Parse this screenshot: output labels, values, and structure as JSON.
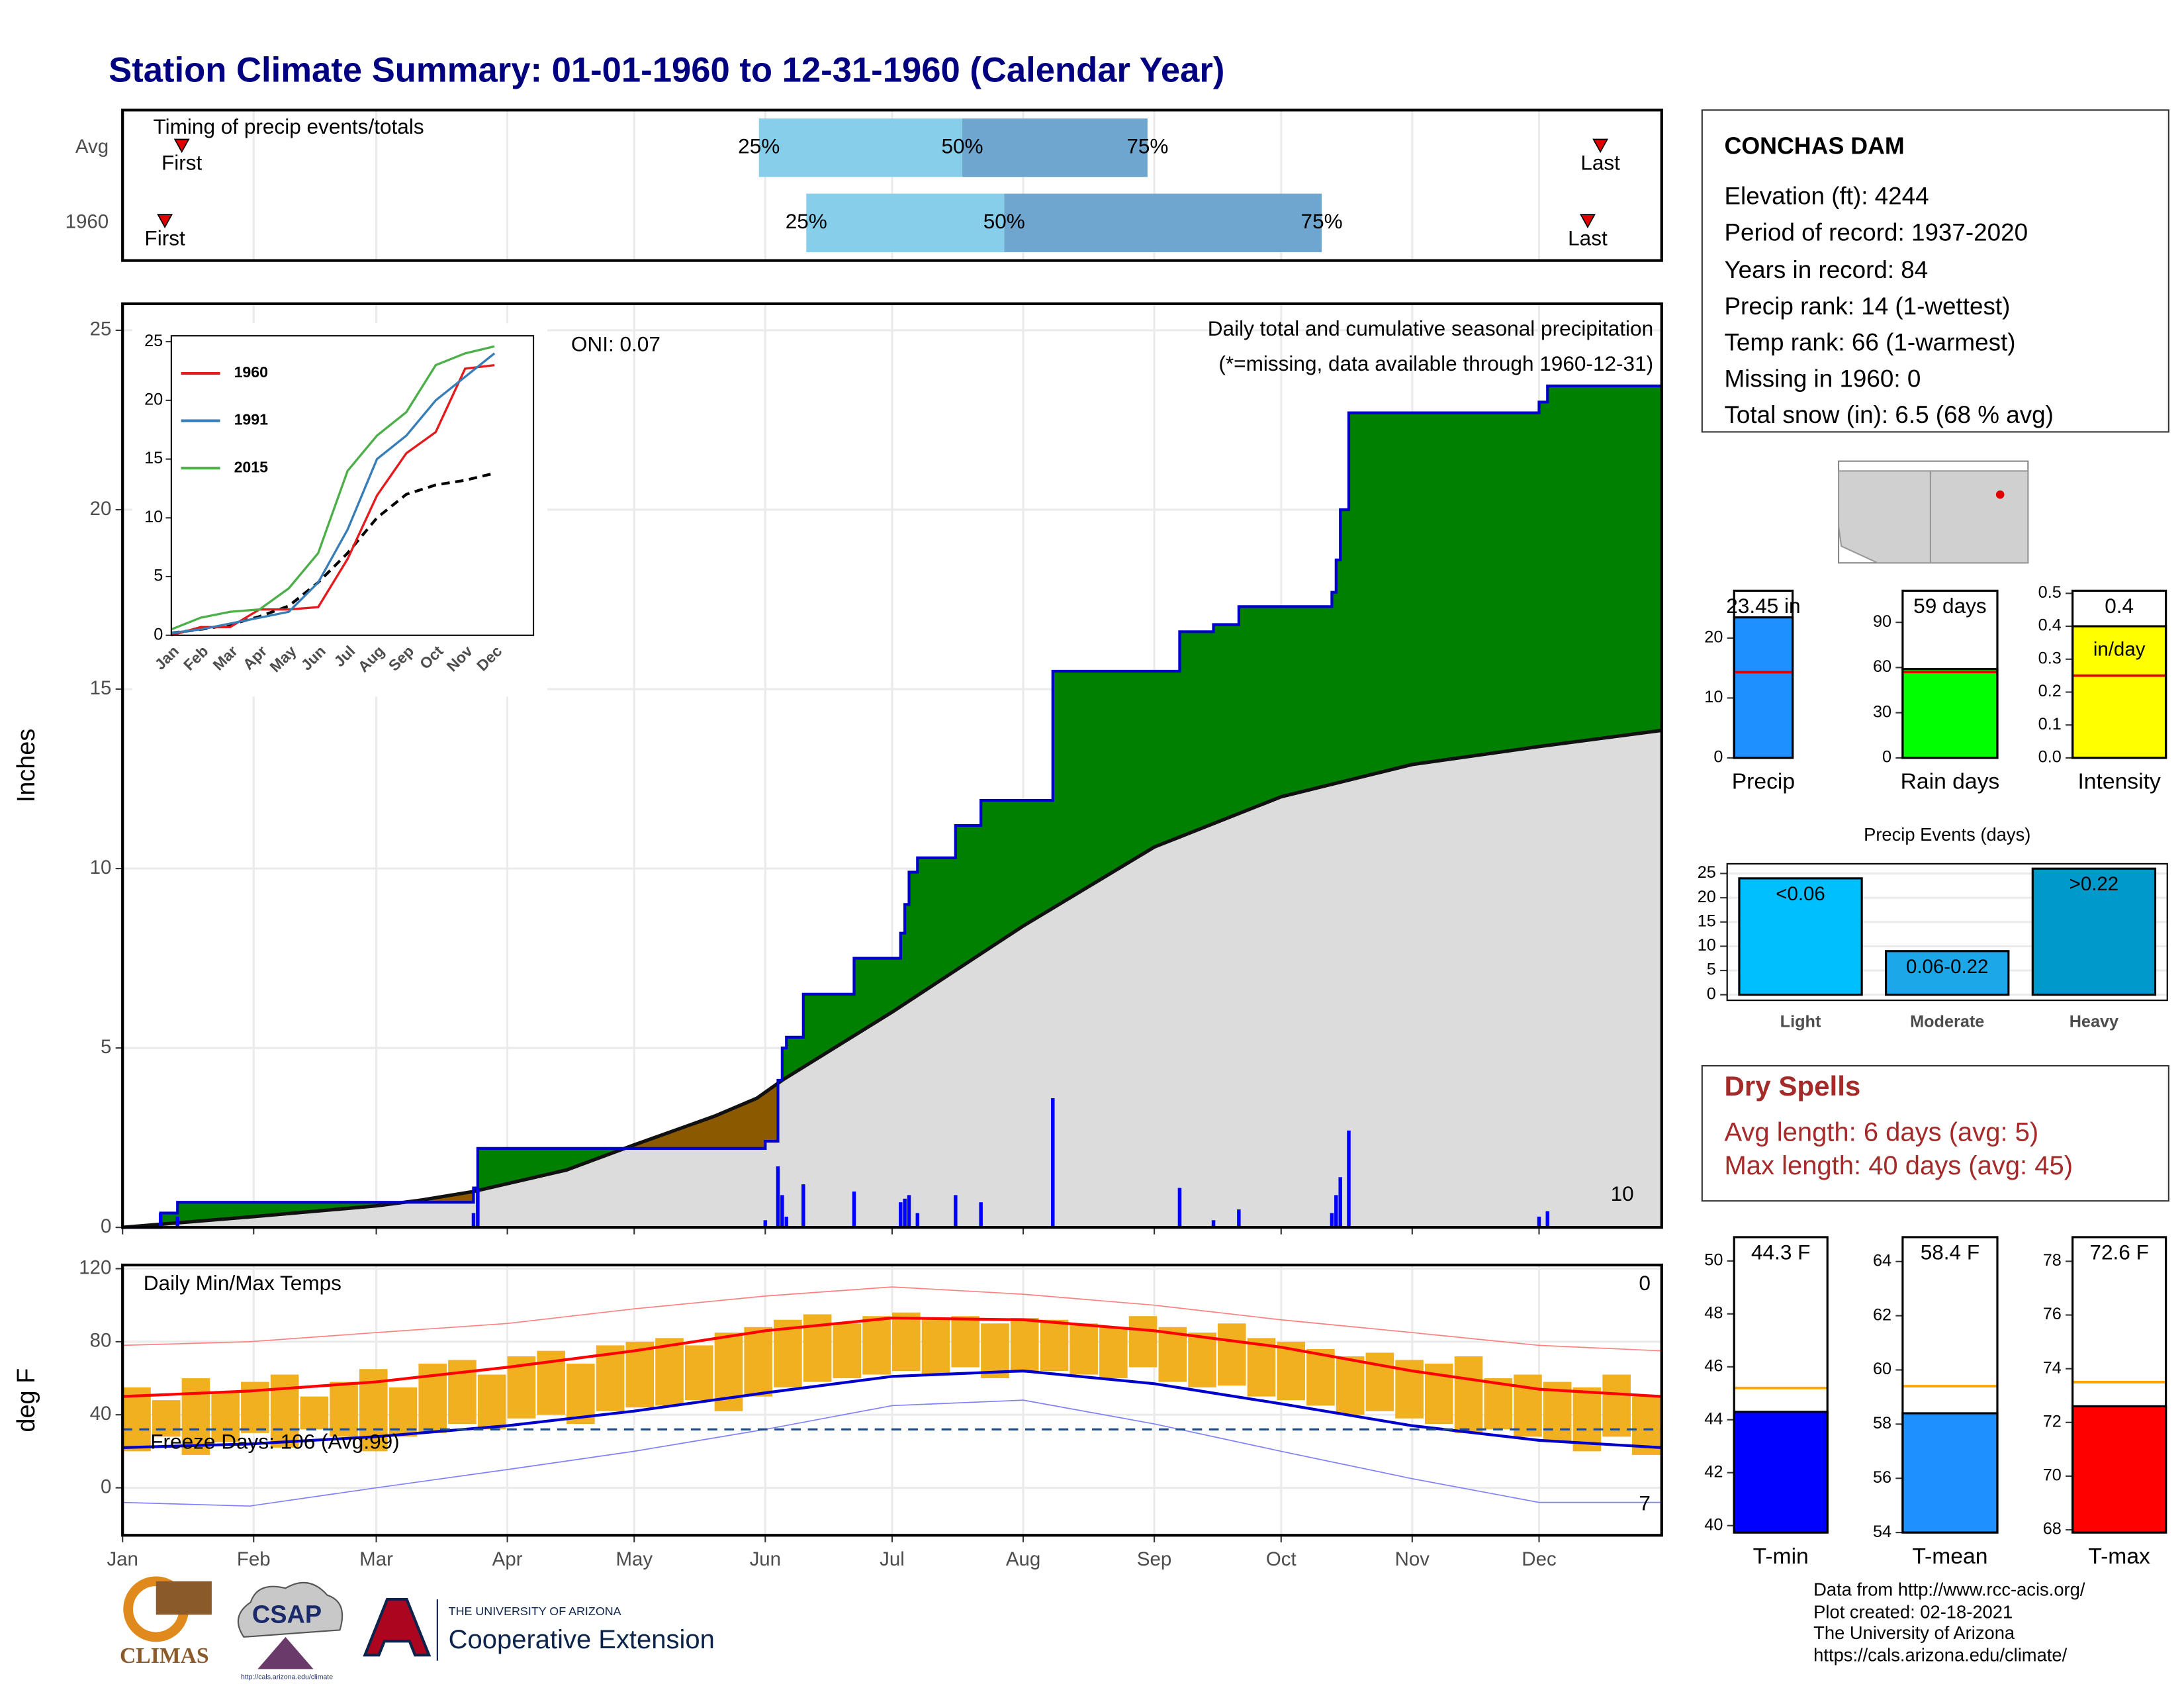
{
  "title": "Station Climate Summary: 01-01-1960 to 12-31-1960 (Calendar Year)",
  "station": {
    "name": "CONCHAS DAM",
    "lines": [
      "Elevation (ft): 4244",
      "Period of record: 1937-2020",
      "Years in record: 84",
      "Precip rank: 14 (1-wettest)",
      "Temp rank: 66 (1-warmest)",
      "Missing in 1960: 0",
      "Total snow (in): 6.5 (68 % avg)"
    ]
  },
  "dry_spells": {
    "title": "Dry Spells",
    "lines": [
      "Avg length: 6 days (avg: 5)",
      "Max length: 40 days (avg: 45)"
    ]
  },
  "footer": {
    "lines": [
      "Data from http://www.rcc-acis.org/",
      "Plot created: 02-18-2021",
      "The University of Arizona",
      "https://cals.arizona.edu/climate/"
    ]
  },
  "logos": {
    "climas": "CLIMAS",
    "csap": "CSAP",
    "csap_url": "http://cals.arizona.edu/climate",
    "university": "THE UNIVERSITY OF ARIZONA",
    "extension": "Cooperative Extension"
  },
  "chart_data": [
    {
      "type": "timing",
      "title": "Timing of precip events/totals",
      "categories": [
        "Avg",
        "1960"
      ],
      "xlim": [
        0,
        364
      ],
      "first": [
        14,
        10
      ],
      "q25": [
        150.5,
        161.7
      ],
      "q50": [
        198.6,
        208.5
      ],
      "q75": [
        242.4,
        283.6
      ],
      "last": [
        349.5,
        346.5
      ],
      "first_label": "First",
      "last_label": "Last",
      "q_labels": [
        "25%",
        "50%",
        "75%"
      ],
      "colors": [
        "#87ceeb",
        "#6ea6cf"
      ],
      "marker_color": "#e00000"
    },
    {
      "type": "cumulative",
      "title": "Daily total and cumulative seasonal precipitation",
      "note": "(*=missing, data available through 1960-12-31)",
      "annotation": "ONI: 0.07",
      "record_count": 10,
      "ylabel": "Inches",
      "xlim": [
        0,
        364
      ],
      "ylim": [
        0,
        25.74
      ],
      "yticks": [
        0,
        5,
        10,
        15,
        20,
        25
      ],
      "observed": {
        "color": "#0000cc",
        "x": [
          0,
          9,
          9,
          13,
          13,
          83,
          83,
          84,
          84,
          152,
          152,
          155,
          155,
          156,
          156,
          157,
          157,
          161,
          161,
          173,
          173,
          184,
          184,
          185,
          185,
          186,
          186,
          188,
          188,
          197,
          197,
          203,
          203,
          220,
          220,
          250,
          250,
          258,
          258,
          264,
          264,
          286,
          286,
          287,
          287,
          288,
          288,
          290,
          290,
          335,
          335,
          337,
          337,
          364
        ],
        "values": [
          0,
          0,
          0.4,
          0.4,
          0.7,
          0.7,
          1.1,
          1.1,
          2.2,
          2.2,
          2.4,
          2.4,
          4.1,
          4.1,
          5.0,
          5.0,
          5.3,
          5.3,
          6.5,
          6.5,
          7.5,
          7.5,
          8.2,
          8.2,
          9.0,
          9.0,
          9.9,
          9.9,
          10.3,
          10.3,
          11.2,
          11.2,
          11.9,
          11.9,
          15.5,
          15.5,
          16.6,
          16.6,
          16.8,
          16.8,
          17.3,
          17.3,
          17.7,
          17.7,
          18.6,
          18.6,
          20.0,
          20.0,
          22.7,
          22.7,
          23.0,
          23.0,
          23.45,
          23.45
        ]
      },
      "average": {
        "color": "#111111",
        "x": [
          0,
          31,
          60,
          70,
          83,
          105,
          121,
          140,
          150,
          156,
          182,
          213,
          244,
          274,
          305,
          335,
          364
        ],
        "values": [
          0,
          0.3,
          0.6,
          0.75,
          1.0,
          1.6,
          2.3,
          3.1,
          3.6,
          4.1,
          6.0,
          8.4,
          10.6,
          12.0,
          12.9,
          13.4,
          13.85
        ]
      },
      "daily": {
        "color": "#0000ff",
        "x": [
          9,
          13,
          83,
          84,
          152,
          155,
          156,
          157,
          161,
          173,
          184,
          185,
          186,
          188,
          197,
          203,
          220,
          250,
          258,
          264,
          286,
          287,
          288,
          290,
          335,
          337
        ],
        "values": [
          0.4,
          0.3,
          0.4,
          1.1,
          0.2,
          1.7,
          0.9,
          0.3,
          1.2,
          1.0,
          0.7,
          0.8,
          0.9,
          0.4,
          0.9,
          0.7,
          3.6,
          1.1,
          0.2,
          0.5,
          0.4,
          0.9,
          1.4,
          2.7,
          0.3,
          0.45
        ]
      },
      "fill_above": "#008000",
      "fill_below": "#8b5a00",
      "fill_avg": "#dcdcdc",
      "count_color": "#ffa500",
      "note_color": "#e00000"
    },
    {
      "type": "line",
      "categories": [
        "Jan",
        "Feb",
        "Mar",
        "Apr",
        "May",
        "Jun",
        "Jul",
        "Aug",
        "Sep",
        "Oct",
        "Nov",
        "Dec"
      ],
      "ylim": [
        0,
        25.5
      ],
      "yticks": [
        0,
        5,
        10,
        15,
        20,
        25
      ],
      "series": [
        {
          "name": "1960",
          "color": "#e41a1c",
          "values": [
            0,
            0.7,
            0.7,
            2.2,
            2.2,
            2.4,
            6.5,
            11.9,
            15.5,
            17.3,
            22.7,
            23.0
          ]
        },
        {
          "name": "1991",
          "color": "#377eb8",
          "values": [
            0.2,
            0.5,
            1.0,
            1.5,
            2.0,
            4.5,
            9.0,
            15.0,
            17.0,
            20.0,
            22.0,
            24.0
          ]
        },
        {
          "name": "2015",
          "color": "#4daf4a",
          "values": [
            0.5,
            1.5,
            2.0,
            2.2,
            4.0,
            7.0,
            14.0,
            17.0,
            19.0,
            23.0,
            24.0,
            24.6
          ]
        }
      ],
      "average_values": [
        0.2,
        0.5,
        0.9,
        1.6,
        2.5,
        4.5,
        7.0,
        10.0,
        12.0,
        12.8,
        13.2,
        13.8
      ]
    },
    {
      "type": "temps",
      "title": "Daily Min/Max Temps",
      "ylabel": "deg F",
      "xlim": [
        0,
        364
      ],
      "ylim": [
        -26,
        122
      ],
      "yticks": [
        0,
        40,
        80,
        120
      ],
      "xticks": [
        {
          "value": 0,
          "label": "Jan"
        },
        {
          "value": 31,
          "label": "Feb"
        },
        {
          "value": 60,
          "label": "Mar"
        },
        {
          "value": 91,
          "label": "Apr"
        },
        {
          "value": 121,
          "label": "May"
        },
        {
          "value": 152,
          "label": "Jun"
        },
        {
          "value": 182,
          "label": "Jul"
        },
        {
          "value": 213,
          "label": "Aug"
        },
        {
          "value": 244,
          "label": "Sep"
        },
        {
          "value": 274,
          "label": "Oct"
        },
        {
          "value": 305,
          "label": "Nov"
        },
        {
          "value": 335,
          "label": "Dec"
        }
      ],
      "freeze_line": 32,
      "freeze_label": "Freeze Days: 106 (Avg:99)",
      "record_high_count": 0,
      "record_low_count": 7,
      "daily": {
        "color": "#f0b020",
        "x": [
          0,
          7,
          14,
          21,
          28,
          35,
          42,
          49,
          56,
          63,
          70,
          77,
          84,
          91,
          98,
          105,
          112,
          119,
          126,
          133,
          140,
          147,
          154,
          161,
          168,
          175,
          182,
          189,
          196,
          203,
          210,
          217,
          224,
          231,
          238,
          245,
          252,
          259,
          266,
          273,
          280,
          287,
          294,
          301,
          308,
          315,
          322,
          329,
          336,
          343,
          350,
          357,
          364
        ],
        "low": [
          20,
          28,
          18,
          25,
          30,
          22,
          32,
          28,
          20,
          28,
          30,
          35,
          32,
          38,
          40,
          35,
          42,
          44,
          45,
          48,
          42,
          50,
          55,
          58,
          60,
          62,
          64,
          62,
          66,
          60,
          63,
          64,
          62,
          60,
          66,
          58,
          55,
          56,
          50,
          48,
          45,
          40,
          42,
          38,
          35,
          30,
          32,
          28,
          25,
          20,
          28,
          18,
          24
        ],
        "high": [
          55,
          48,
          60,
          52,
          58,
          62,
          50,
          58,
          65,
          55,
          68,
          70,
          62,
          72,
          75,
          68,
          78,
          80,
          82,
          78,
          85,
          88,
          92,
          95,
          90,
          94,
          96,
          92,
          94,
          90,
          93,
          92,
          90,
          88,
          94,
          88,
          85,
          90,
          82,
          80,
          76,
          72,
          74,
          70,
          68,
          72,
          60,
          62,
          58,
          55,
          62,
          50,
          48
        ]
      },
      "avg_max": {
        "color": "#ff0000",
        "x": [
          0,
          30,
          60,
          91,
          121,
          152,
          182,
          213,
          244,
          274,
          305,
          335,
          364
        ],
        "values": [
          50,
          53,
          58,
          66,
          75,
          86,
          93,
          92,
          86,
          77,
          64,
          54,
          50
        ]
      },
      "avg_min": {
        "color": "#0000cc",
        "x": [
          0,
          30,
          60,
          91,
          121,
          152,
          182,
          213,
          244,
          274,
          305,
          335,
          364
        ],
        "values": [
          22,
          24,
          28,
          34,
          42,
          52,
          61,
          64,
          57,
          46,
          34,
          26,
          22
        ]
      },
      "record_high": {
        "color": "#ff8080",
        "x": [
          0,
          30,
          60,
          91,
          121,
          152,
          182,
          213,
          244,
          274,
          305,
          335,
          364
        ],
        "values": [
          78,
          80,
          85,
          90,
          98,
          105,
          110,
          106,
          100,
          92,
          85,
          78,
          75
        ]
      },
      "record_low": {
        "color": "#8080ff",
        "x": [
          0,
          30,
          60,
          91,
          121,
          152,
          182,
          213,
          244,
          274,
          305,
          335,
          364
        ],
        "values": [
          -8,
          -10,
          0,
          10,
          20,
          32,
          45,
          48,
          35,
          20,
          5,
          -8,
          -8
        ]
      },
      "freeze_color": "#1a4a8a",
      "high_count_color": "#e00000",
      "low_count_color": "#0000cc"
    },
    {
      "type": "gauge",
      "xlabel": "Precip",
      "value": 23.45,
      "value_label": "23.45 in",
      "avg": 14.3,
      "ylim": [
        0,
        27.9
      ],
      "yticks": [
        0,
        10,
        20
      ],
      "color": "#1e90ff",
      "avg_color": "#e00000"
    },
    {
      "type": "gauge",
      "xlabel": "Rain days",
      "value": 59,
      "value_label": "59 days",
      "avg": 57,
      "ylim": [
        0,
        111
      ],
      "yticks": [
        0,
        30,
        60,
        90
      ],
      "color": "#00ff00",
      "avg_color": "#e00000"
    },
    {
      "type": "gauge",
      "xlabel": "Intensity",
      "value": 0.4,
      "value_label": "0.4",
      "unit": "in/day",
      "avg": 0.25,
      "ylim": [
        0,
        0.508
      ],
      "yticks": [
        {
          "value": 0,
          "label": "0.0"
        },
        0.1,
        0.2,
        0.3,
        0.4,
        0.5
      ],
      "color": "#ffff00",
      "avg_color": "#e00000"
    },
    {
      "type": "bar",
      "title": "Precip Events (days)",
      "categories": [
        "Light",
        "Moderate",
        "Heavy"
      ],
      "values": [
        24,
        9,
        26
      ],
      "bar_labels": [
        "<0.06",
        "0.06-0.22",
        ">0.22"
      ],
      "colors": [
        "#00bfff",
        "#1ca8e8",
        "#0099cc"
      ],
      "ylim": [
        -1.15,
        27
      ],
      "yticks": [
        0,
        5,
        10,
        15,
        20,
        25
      ]
    },
    {
      "type": "gauge",
      "xlabel": "T-min",
      "value": 44.3,
      "value_label": "44.3 F",
      "avg": 45.2,
      "ylim": [
        39.74,
        50.9
      ],
      "yticks": [
        40,
        42,
        44,
        46,
        48,
        50
      ],
      "color": "#0000ff",
      "avg_color": "#ffa500"
    },
    {
      "type": "gauge",
      "xlabel": "T-mean",
      "value": 58.4,
      "value_label": "58.4 F",
      "avg": 59.4,
      "ylim": [
        54,
        64.9
      ],
      "yticks": [
        54,
        56,
        58,
        60,
        62,
        64
      ],
      "color": "#1e90ff",
      "avg_color": "#ffa500"
    },
    {
      "type": "gauge",
      "xlabel": "T-max",
      "value": 72.6,
      "value_label": "72.6 F",
      "avg": 73.5,
      "ylim": [
        67.9,
        78.9
      ],
      "yticks": [
        68,
        70,
        72,
        74,
        76,
        78
      ],
      "color": "#ff0000",
      "avg_color": "#ffa500"
    }
  ]
}
